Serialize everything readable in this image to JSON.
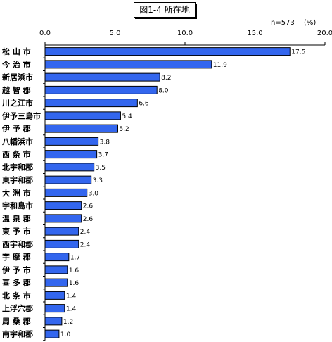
{
  "chart_data": {
    "type": "bar",
    "orientation": "horizontal",
    "title": "図1-4 所在地",
    "sample_size_label": "n=573",
    "unit_label": "(%)",
    "xlim": [
      0,
      20
    ],
    "xticks": [
      "0.0",
      "5.0",
      "10.0",
      "15.0",
      "20.0"
    ],
    "grid": false,
    "bar_color": "#3366ee",
    "categories": [
      "松 山 市",
      "今 治 市",
      "新居浜市",
      "越 智 郡",
      "川之江市",
      "伊予三島市",
      "伊 予 郡",
      "八幡浜市",
      "西 条 市",
      "北宇和郡",
      "東宇和郡",
      "大 洲 市",
      "宇和島市",
      "温 泉 郡",
      "東 予 市",
      "西宇和郡",
      "宇 摩 郡",
      "伊 予 市",
      "喜 多 郡",
      "北 条 市",
      "上浮穴郡",
      "周 桑 郡",
      "南宇和郡"
    ],
    "values": [
      17.5,
      11.9,
      8.2,
      8.0,
      6.6,
      5.4,
      5.2,
      3.8,
      3.7,
      3.5,
      3.3,
      3.0,
      2.6,
      2.6,
      2.4,
      2.4,
      1.7,
      1.6,
      1.6,
      1.4,
      1.4,
      1.2,
      1.0
    ],
    "value_labels": [
      "17.5",
      "11.9",
      "8.2",
      "8.0",
      "6.6",
      "5.4",
      "5.2",
      "3.8",
      "3.7",
      "3.5",
      "3.3",
      "3.0",
      "2.6",
      "2.6",
      "2.4",
      "2.4",
      "1.7",
      "1.6",
      "1.6",
      "1.4",
      "1.4",
      "1.2",
      "1.0"
    ]
  }
}
